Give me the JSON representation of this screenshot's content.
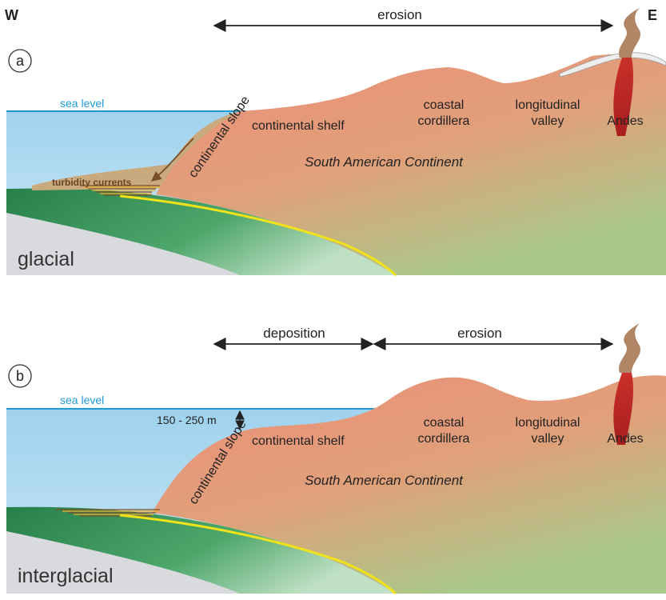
{
  "compass": {
    "west": "W",
    "east": "E"
  },
  "colors": {
    "sea": "#a9d7ef",
    "sea_line": "#1f9ad6",
    "continent_top": "#ea9078",
    "continent_bottom": "#c2ba82",
    "oceanic_plate": "#2e8a4a",
    "mantle": "#d9dbe0",
    "subduction_line": "#f2e21a",
    "sediment": "#c9aa82",
    "snow": "#ececec"
  },
  "panel_a": {
    "letter": "a",
    "process_arrow": "erosion",
    "sea_level": "sea level",
    "slope": "continental slope",
    "shelf": "continental shelf",
    "turbidity": "turbidity currents",
    "cordillera_1": "coastal",
    "cordillera_2": "cordillera",
    "valley_1": "longitudinal",
    "valley_2": "valley",
    "andes": "Andes",
    "continent": "South American Continent",
    "climate": "glacial"
  },
  "panel_b": {
    "letter": "b",
    "deposition_arrow": "deposition",
    "erosion_arrow": "erosion",
    "sea_level": "sea level",
    "depth": "150 - 250 m",
    "slope": "continental slope",
    "shelf": "continental shelf",
    "cordillera_1": "coastal",
    "cordillera_2": "cordillera",
    "valley_1": "longitudinal",
    "valley_2": "valley",
    "andes": "Andes",
    "continent": "South American Continent",
    "climate": "interglacial"
  }
}
